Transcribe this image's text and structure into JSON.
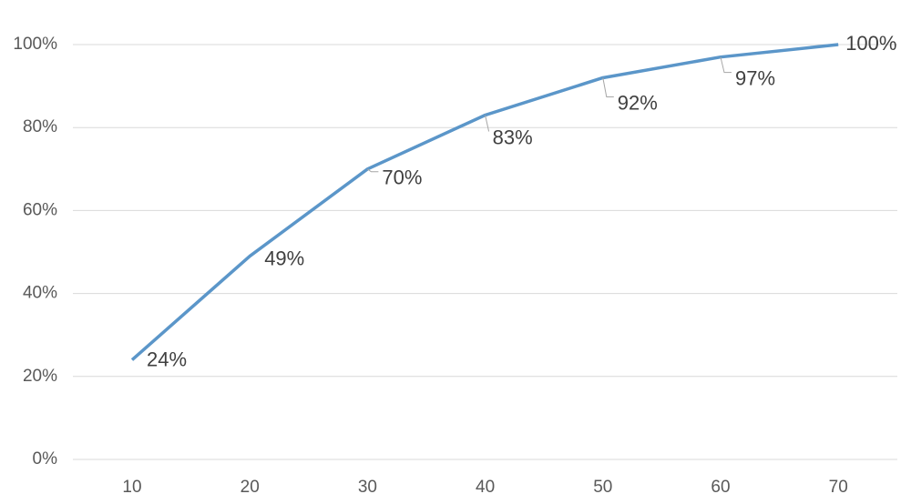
{
  "chart_data": {
    "type": "line",
    "categories": [
      "10",
      "20",
      "30",
      "40",
      "50",
      "60",
      "70"
    ],
    "series": [
      {
        "color": "#5b96c9",
        "values": [
          24,
          49,
          70,
          83,
          92,
          97,
          100
        ],
        "value_labels": [
          "24%",
          "49%",
          "70%",
          "83%",
          "92%",
          "97%",
          "100%"
        ]
      }
    ],
    "ylim": [
      0,
      100
    ],
    "yticks": [
      {
        "value": 0,
        "label": "0%"
      },
      {
        "value": 20,
        "label": "20%"
      },
      {
        "value": 40,
        "label": "40%"
      },
      {
        "value": 60,
        "label": "60%"
      },
      {
        "value": 80,
        "label": "80%"
      },
      {
        "value": 100,
        "label": "100%"
      }
    ],
    "grid": true
  }
}
